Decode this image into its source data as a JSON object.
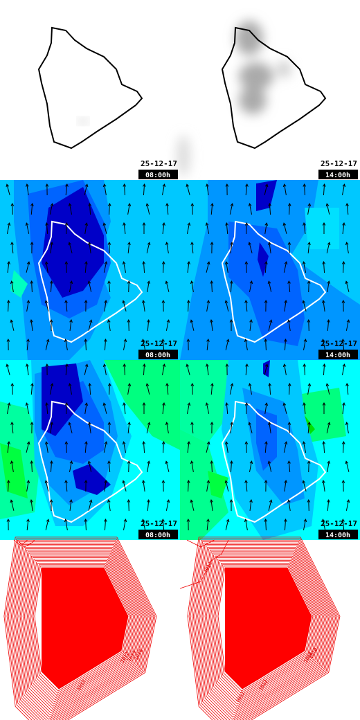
{
  "panels": [
    {
      "date": "25-12-17",
      "time": "08:00h"
    },
    {
      "date": "25-12-17",
      "time": "14:00h"
    },
    {
      "date": "25-12-17",
      "time": "08:00h"
    },
    {
      "date": "25-12-17",
      "time": "14:00h"
    },
    {
      "date": "25-12-17",
      "time": "08:00h"
    },
    {
      "date": "25-12-17",
      "time": "14:00h"
    }
  ],
  "isobars": [
    {
      "labels": [
        "1012",
        "1014",
        "1016",
        "1012"
      ]
    },
    {
      "labels": [
        "1012",
        "1008",
        "1010",
        "1012",
        "1012"
      ]
    }
  ]
}
